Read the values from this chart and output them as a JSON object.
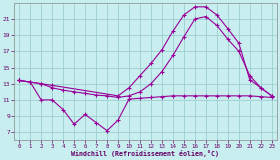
{
  "background_color": "#c8eef0",
  "line_color": "#990099",
  "grid_color": "#9ecece",
  "xlabel": "Windchill (Refroidissement éolien,°C)",
  "xlabel_color": "#660066",
  "tick_color": "#660066",
  "xlim": [
    -0.5,
    23.5
  ],
  "ylim": [
    6.0,
    23.0
  ],
  "yticks": [
    7,
    9,
    11,
    13,
    15,
    17,
    19,
    21
  ],
  "xticks": [
    0,
    1,
    2,
    3,
    4,
    5,
    6,
    7,
    8,
    9,
    10,
    11,
    12,
    13,
    14,
    15,
    16,
    17,
    18,
    19,
    20,
    21,
    22,
    23
  ],
  "curve1_x": [
    0,
    1,
    2,
    3,
    4,
    5,
    6,
    7,
    8,
    9,
    10,
    11,
    12,
    13,
    14,
    15,
    16,
    17,
    18,
    19,
    20,
    21,
    22,
    23
  ],
  "curve1_y": [
    13.4,
    13.2,
    11.0,
    11.0,
    9.8,
    8.0,
    9.2,
    8.2,
    7.2,
    8.5,
    11.1,
    11.2,
    11.3,
    11.4,
    11.5,
    11.5,
    11.5,
    11.5,
    11.5,
    11.5,
    11.5,
    11.5,
    11.4,
    11.3
  ],
  "curve2_x": [
    0,
    1,
    2,
    3,
    4,
    5,
    6,
    7,
    8,
    9,
    10,
    11,
    12,
    13,
    14,
    15,
    16,
    17,
    18,
    19,
    20,
    21,
    22,
    23
  ],
  "curve2_y": [
    13.4,
    13.2,
    13.0,
    12.5,
    12.2,
    12.0,
    11.8,
    11.6,
    11.5,
    11.3,
    11.5,
    12.0,
    13.0,
    14.5,
    16.5,
    18.8,
    21.0,
    21.3,
    20.2,
    18.5,
    17.0,
    14.0,
    12.5,
    11.5
  ],
  "curve3_x": [
    0,
    2,
    3,
    9,
    10,
    11,
    12,
    13,
    14,
    15,
    16,
    17,
    18,
    19,
    20,
    21,
    22,
    23
  ],
  "curve3_y": [
    13.4,
    13.0,
    12.8,
    11.5,
    12.5,
    14.0,
    15.5,
    17.2,
    19.5,
    21.5,
    22.5,
    22.5,
    21.5,
    19.8,
    18.0,
    13.5,
    12.5,
    11.5
  ]
}
